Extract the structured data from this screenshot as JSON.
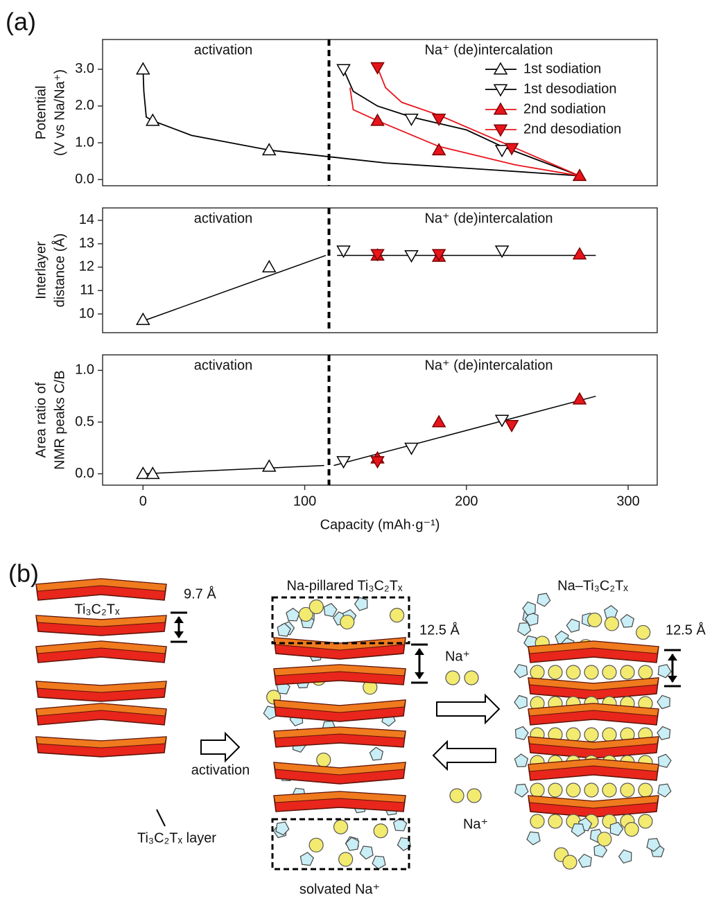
{
  "figure": {
    "panel_a": "(a)"
  },
  "chart_data": [
    {
      "type": "line",
      "ylabel": [
        "Potential",
        "(V vs Na/Na⁺)"
      ],
      "annotations": [
        "activation",
        "Na⁺ (de)intercalation"
      ],
      "xlim": [
        -25,
        318
      ],
      "ylim": [
        -0.17,
        3.81
      ],
      "yticks": [
        {
          "value": 0,
          "label": "0.0"
        },
        {
          "value": 1,
          "label": "1.0"
        },
        {
          "value": 2,
          "label": "2.0"
        },
        {
          "value": 3,
          "label": "3.0"
        }
      ],
      "divider_x": 115,
      "legend": "upper right",
      "series": [
        {
          "name": "1st sodiation",
          "color": "#000000",
          "marker": "triangle-up",
          "marker_fill": "#ffffff",
          "x": [
            0,
            6,
            78
          ],
          "values": [
            3.0,
            1.6,
            0.8
          ],
          "line": {
            "x": [
              0,
              0.5,
              2,
              6,
              30,
              78,
              150,
              220,
              270
            ],
            "values": [
              3.0,
              2.4,
              1.7,
              1.6,
              1.2,
              0.8,
              0.45,
              0.25,
              0.1
            ]
          }
        },
        {
          "name": "1st desodiation",
          "color": "#000000",
          "marker": "triangle-down",
          "marker_fill": "#ffffff",
          "x": [
            124,
            166,
            222
          ],
          "values": [
            3.0,
            1.65,
            0.8
          ],
          "line": {
            "x": [
              124,
              130,
              145,
              166,
              200,
              222,
              270
            ],
            "values": [
              3.0,
              2.4,
              2.0,
              1.7,
              1.35,
              0.9,
              0.1
            ]
          }
        },
        {
          "name": "2nd sodiation",
          "color": "#e8141c",
          "marker": "triangle-up",
          "marker_fill": "#e8141c",
          "x": [
            145,
            183,
            270
          ],
          "values": [
            1.6,
            0.8,
            0.1
          ],
          "line": {
            "x": [
              128,
              130,
              145,
              183,
              230,
              270
            ],
            "values": [
              2.5,
              1.9,
              1.6,
              0.9,
              0.4,
              0.1
            ]
          }
        },
        {
          "name": "2nd desodiation",
          "color": "#e8141c",
          "marker": "triangle-down",
          "marker_fill": "#e8141c",
          "x": [
            145,
            183,
            228
          ],
          "values": [
            3.05,
            1.65,
            0.85
          ],
          "line": {
            "x": [
              145,
              150,
              160,
              183,
              228,
              270
            ],
            "values": [
              3.05,
              2.5,
              2.1,
              1.75,
              0.9,
              0.1
            ]
          }
        }
      ]
    },
    {
      "type": "scatter",
      "ylabel": [
        "Interlayer",
        "distance (Å)"
      ],
      "annotations": [
        "activation",
        "Na⁺ (de)intercalation"
      ],
      "xlim": [
        -25,
        318
      ],
      "ylim": [
        9.2,
        14.53
      ],
      "yticks": [
        10,
        11,
        12,
        13,
        14
      ],
      "divider_x": 115,
      "fits": [
        {
          "x": [
            0,
            113
          ],
          "values": [
            9.7,
            12.5
          ]
        },
        {
          "x": [
            120,
            280
          ],
          "values": [
            12.5,
            12.5
          ]
        }
      ],
      "series": [
        {
          "name": "1st sodiation",
          "color": "#000000",
          "marker": "triangle-up",
          "marker_fill": "#ffffff",
          "x": [
            0,
            78
          ],
          "values": [
            9.75,
            12.0
          ]
        },
        {
          "name": "1st desodiation",
          "color": "#000000",
          "marker": "triangle-down",
          "marker_fill": "#ffffff",
          "x": [
            124,
            166,
            222
          ],
          "values": [
            12.7,
            12.5,
            12.7
          ]
        },
        {
          "name": "2nd sodiation",
          "color": "#e8141c",
          "marker": "triangle-up",
          "marker_fill": "#e8141c",
          "x": [
            145,
            183,
            270
          ],
          "values": [
            12.5,
            12.45,
            12.55
          ]
        },
        {
          "name": "2nd desodiation",
          "color": "#e8141c",
          "marker": "triangle-down",
          "marker_fill": "#e8141c",
          "x": [
            145,
            183
          ],
          "values": [
            12.55,
            12.55
          ]
        }
      ]
    },
    {
      "type": "scatter",
      "ylabel": [
        "Area ratio of",
        "NMR peaks C/B"
      ],
      "xlabel": "Capacity (mAh·g⁻¹)",
      "annotations": [
        "activation",
        "Na⁺ (de)intercalation"
      ],
      "xlim": [
        -25,
        318
      ],
      "ylim": [
        -0.11,
        1.15
      ],
      "xticks": [
        0,
        100,
        200,
        300
      ],
      "yticks": [
        {
          "value": 0,
          "label": "0.0"
        },
        {
          "value": 0.5,
          "label": "0.5"
        },
        {
          "value": 1,
          "label": "1.0"
        }
      ],
      "divider_x": 115,
      "fits": [
        {
          "x": [
            0,
            112
          ],
          "values": [
            0,
            0.08
          ]
        },
        {
          "x": [
            118,
            280
          ],
          "values": [
            0.08,
            0.75
          ]
        }
      ],
      "series": [
        {
          "name": "1st sodiation",
          "color": "#000000",
          "marker": "triangle-up",
          "marker_fill": "#ffffff",
          "x": [
            0,
            6,
            78
          ],
          "values": [
            0,
            0,
            0.07
          ]
        },
        {
          "name": "1st desodiation",
          "color": "#000000",
          "marker": "triangle-down",
          "marker_fill": "#ffffff",
          "x": [
            124,
            166,
            222
          ],
          "values": [
            0.12,
            0.25,
            0.52
          ]
        },
        {
          "name": "2nd sodiation",
          "color": "#e8141c",
          "marker": "triangle-up",
          "marker_fill": "#e8141c",
          "x": [
            145,
            183,
            270
          ],
          "values": [
            0.15,
            0.5,
            0.72
          ]
        },
        {
          "name": "2nd desodiation",
          "color": "#e8141c",
          "marker": "triangle-down",
          "marker_fill": "#e8141c",
          "x": [
            145,
            228
          ],
          "values": [
            0.12,
            0.47
          ]
        }
      ]
    }
  ],
  "diagram": {
    "panel_b": "(b)",
    "left_title": "Ti₃C₂Tₓ",
    "left_spacing": "9.7 Å",
    "arrow_label": "activation",
    "layer_label": "Ti₃C₂Tₓ layer",
    "middle_title": "Na-pillared Ti₃C₂Tₓ",
    "middle_spacing": "12.5 Å",
    "ion_top": "Na⁺",
    "ion_bottom": "Na⁺",
    "right_title": "Na–Ti₃C₂Tₓ",
    "right_spacing": "12.5 Å",
    "bottom_label": "solvated Na⁺"
  }
}
